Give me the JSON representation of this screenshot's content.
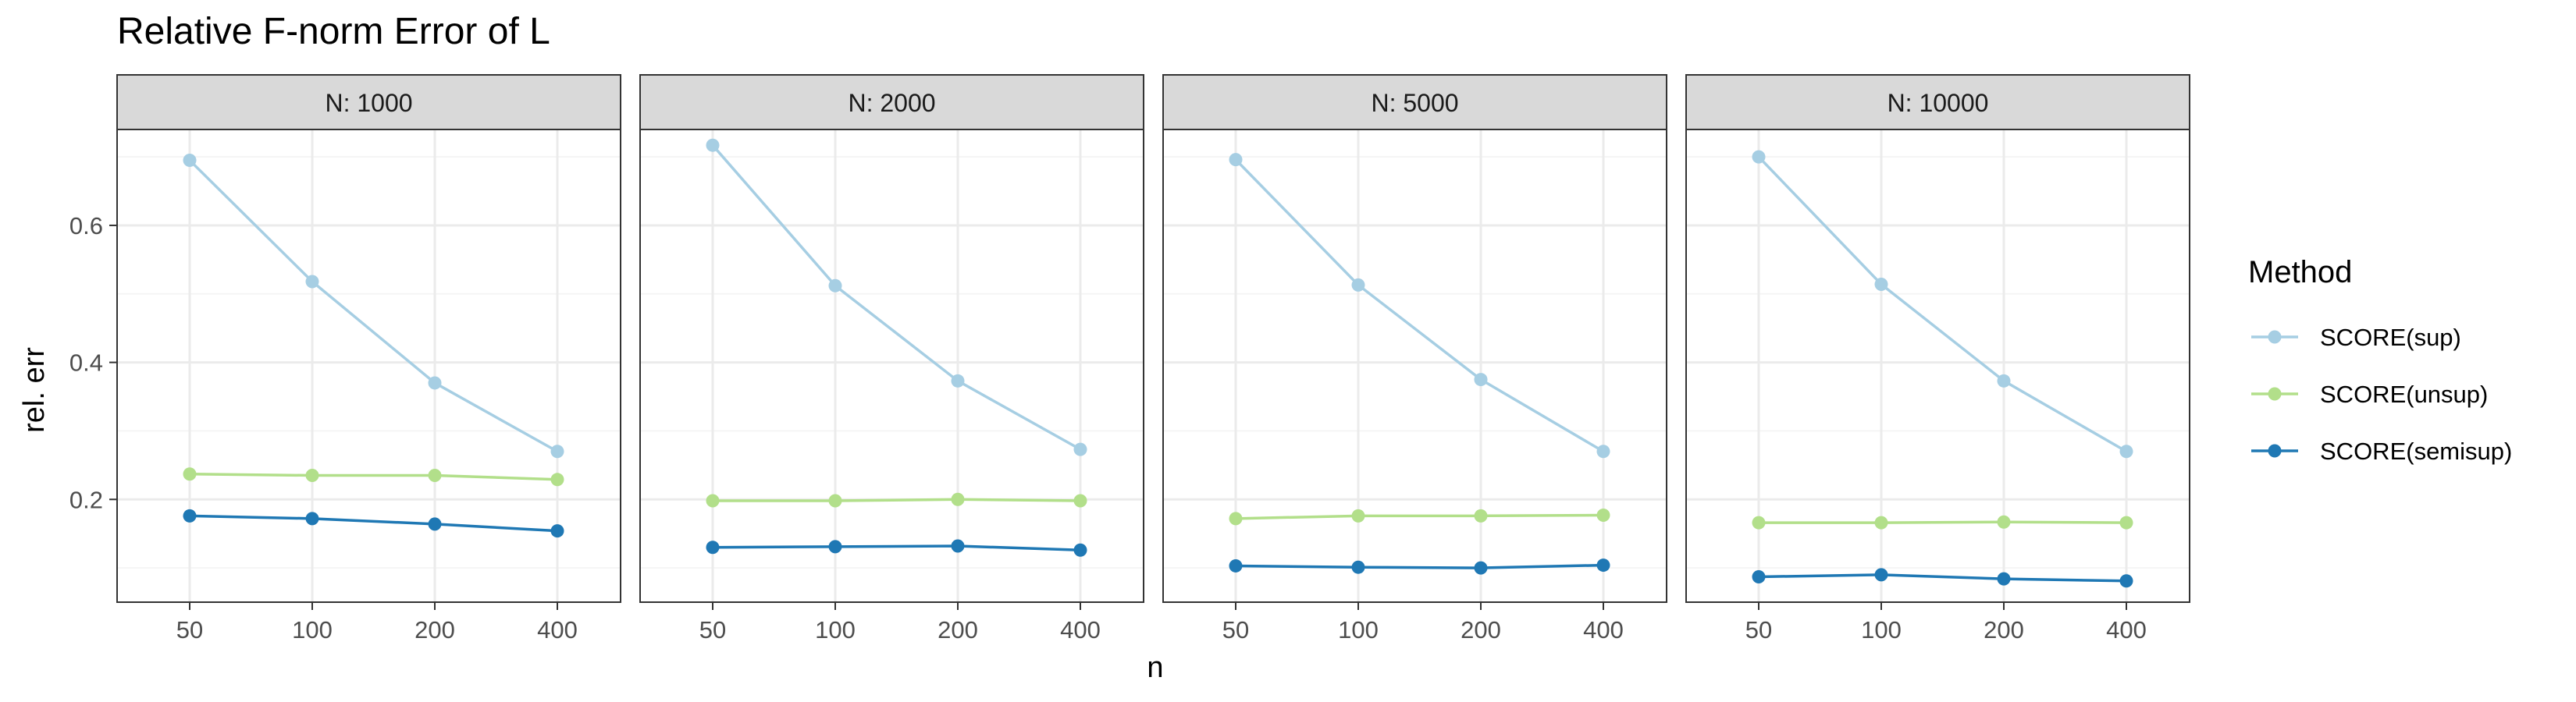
{
  "chart_data": {
    "type": "line",
    "title": "Relative F-norm Error of L",
    "xlabel": "n",
    "ylabel": "rel. err",
    "x": [
      "50",
      "100",
      "200",
      "400"
    ],
    "ylim": [
      0.05,
      0.74
    ],
    "yticks": [
      0.2,
      0.4,
      0.6
    ],
    "grid": true,
    "legend": {
      "title": "Method",
      "position": "right",
      "entries": [
        "SCORE(sup)",
        "SCORE(unsup)",
        "SCORE(semisup)"
      ]
    },
    "colors": {
      "SCORE(sup)": "#a6cee3",
      "SCORE(unsup)": "#b2df8a",
      "SCORE(semisup)": "#1f78b4",
      "strip_fill": "#d9d9d9",
      "grid_major": "#ebebeb",
      "grid_minor": "#f5f5f5",
      "panel_border": "#333333",
      "axis_text": "#4d4d4d"
    },
    "panels": [
      {
        "label": "N: 1000",
        "series": [
          {
            "name": "SCORE(sup)",
            "values": [
              0.695,
              0.518,
              0.37,
              0.27
            ]
          },
          {
            "name": "SCORE(unsup)",
            "values": [
              0.237,
              0.235,
              0.235,
              0.229
            ]
          },
          {
            "name": "SCORE(semisup)",
            "values": [
              0.176,
              0.172,
              0.164,
              0.154
            ]
          }
        ]
      },
      {
        "label": "N: 2000",
        "series": [
          {
            "name": "SCORE(sup)",
            "values": [
              0.717,
              0.512,
              0.373,
              0.273
            ]
          },
          {
            "name": "SCORE(unsup)",
            "values": [
              0.198,
              0.198,
              0.2,
              0.198
            ]
          },
          {
            "name": "SCORE(semisup)",
            "values": [
              0.13,
              0.131,
              0.132,
              0.126
            ]
          }
        ]
      },
      {
        "label": "N: 5000",
        "series": [
          {
            "name": "SCORE(sup)",
            "values": [
              0.696,
              0.513,
              0.375,
              0.27
            ]
          },
          {
            "name": "SCORE(unsup)",
            "values": [
              0.172,
              0.176,
              0.176,
              0.177
            ]
          },
          {
            "name": "SCORE(semisup)",
            "values": [
              0.103,
              0.101,
              0.1,
              0.104
            ]
          }
        ]
      },
      {
        "label": "N: 10000",
        "series": [
          {
            "name": "SCORE(sup)",
            "values": [
              0.7,
              0.514,
              0.373,
              0.27
            ]
          },
          {
            "name": "SCORE(unsup)",
            "values": [
              0.166,
              0.166,
              0.167,
              0.166
            ]
          },
          {
            "name": "SCORE(semisup)",
            "values": [
              0.087,
              0.09,
              0.084,
              0.081
            ]
          }
        ]
      }
    ]
  }
}
